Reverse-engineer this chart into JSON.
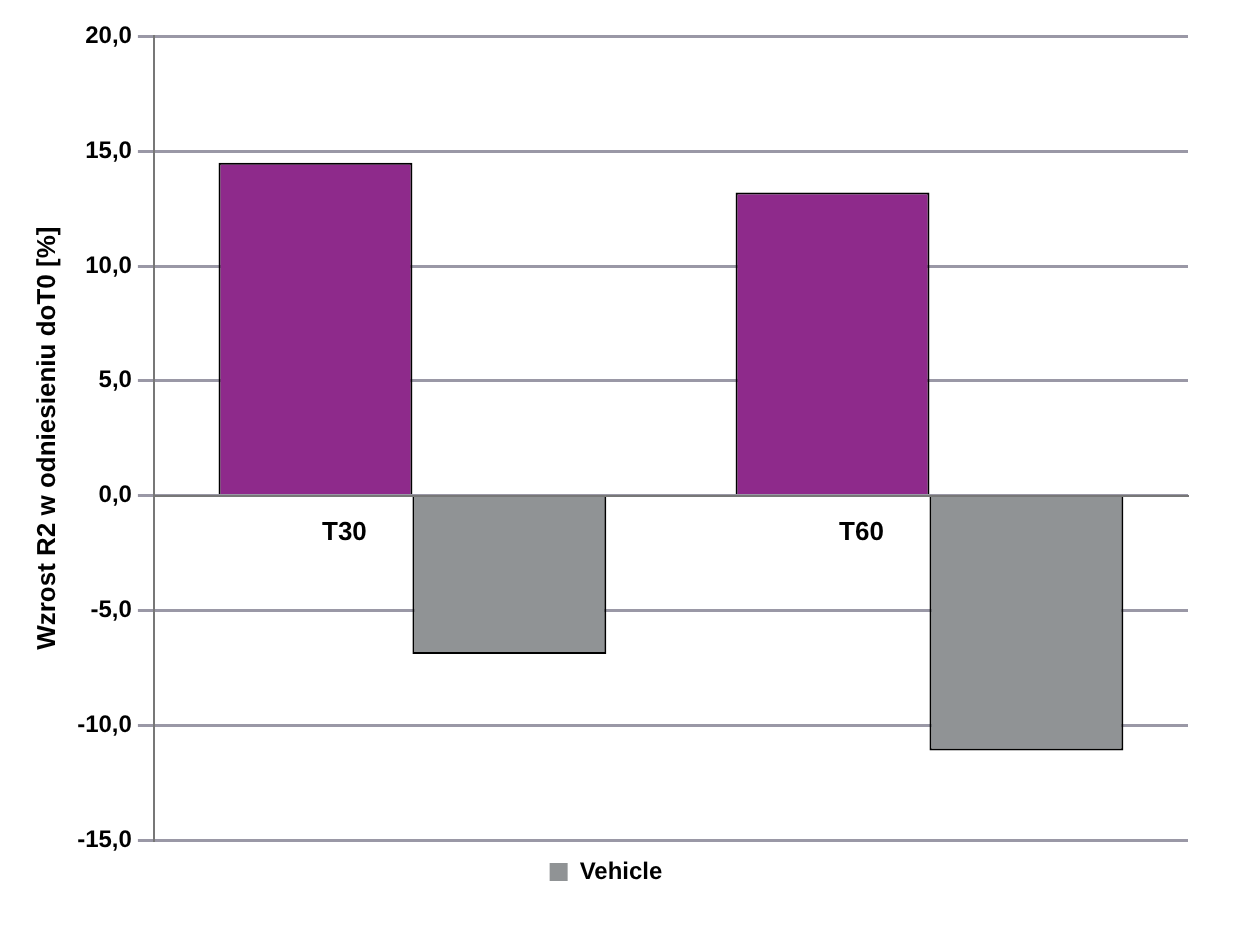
{
  "chart_data": {
    "type": "bar",
    "ylabel": "Wzrost R2 w odniesieniu doT0 [%]",
    "categories": [
      "T30",
      "T60"
    ],
    "series": [
      {
        "color": "#8e2a8b",
        "values": [
          14.5,
          13.2
        ]
      },
      {
        "name": "Vehicle",
        "color": "#909395",
        "values": [
          -6.9,
          -11.1
        ]
      }
    ],
    "ylim": [
      -15,
      20
    ],
    "yticks": [
      {
        "value": -15,
        "label": "-15,0"
      },
      {
        "value": -10,
        "label": "-10,0"
      },
      {
        "value": -5,
        "label": "-5,0"
      },
      {
        "value": 0,
        "label": "0,0"
      },
      {
        "value": 5,
        "label": "5,0"
      },
      {
        "value": 10,
        "label": "10,0"
      },
      {
        "value": 15,
        "label": "15,0"
      },
      {
        "value": 20,
        "label": "20,0"
      }
    ],
    "grid": "y",
    "legend": "bottom"
  }
}
